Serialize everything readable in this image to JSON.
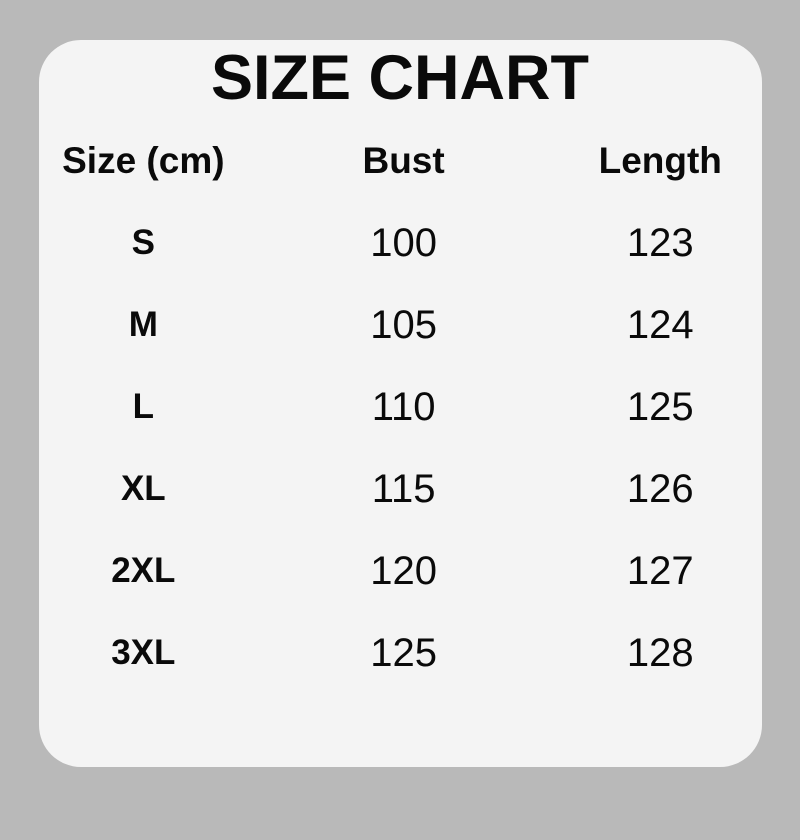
{
  "colors": {
    "page-bg": "#b9b9b9",
    "card-bg": "#f4f4f4",
    "text-color": "#0a0a0a"
  },
  "chart_data": {
    "type": "table",
    "title": "SIZE CHART",
    "columns": [
      "Size (cm)",
      "Bust",
      "Length"
    ],
    "rows": [
      [
        "S",
        "100",
        "123"
      ],
      [
        "M",
        "105",
        "124"
      ],
      [
        "L",
        "110",
        "125"
      ],
      [
        "XL",
        "115",
        "126"
      ],
      [
        "2XL",
        "120",
        "127"
      ],
      [
        "3XL",
        "125",
        "128"
      ]
    ]
  }
}
